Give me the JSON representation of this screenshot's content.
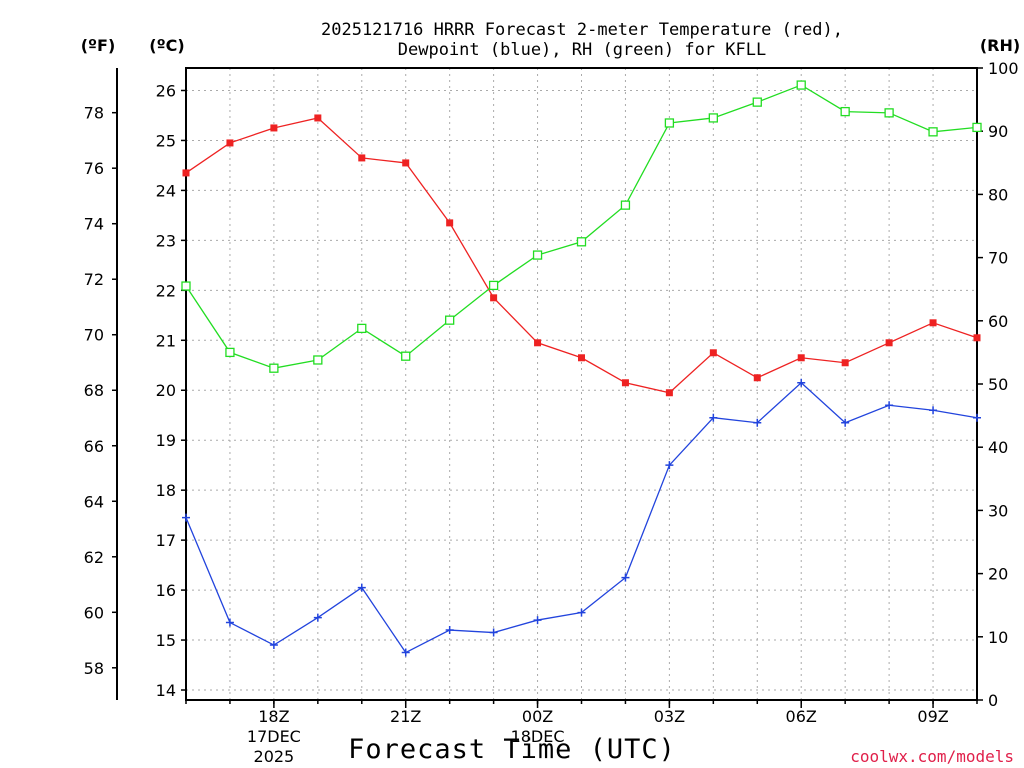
{
  "chart_data": {
    "type": "line",
    "title": [
      "2025121716 HRRR Forecast 2-meter Temperature (red),",
      "Dewpoint (blue), RH (green) for KFLL"
    ],
    "units": {
      "fahrenheit": "(ºF)",
      "celsius": "(ºC)",
      "rh": "(RH)"
    },
    "xlabel": "Forecast Time (UTC)",
    "credit": "coolwx.com/models",
    "x": [
      16,
      17,
      18,
      19,
      20,
      21,
      22,
      23,
      24,
      25,
      26,
      27,
      28,
      29,
      30,
      31,
      32,
      33,
      34
    ],
    "xlim": [
      16,
      34
    ],
    "x_ticks": [
      {
        "x": 18,
        "label": "18Z",
        "sub": [
          "17DEC",
          "2025"
        ]
      },
      {
        "x": 21,
        "label": "21Z",
        "sub": []
      },
      {
        "x": 24,
        "label": "00Z",
        "sub": [
          "18DEC"
        ]
      },
      {
        "x": 27,
        "label": "03Z",
        "sub": []
      },
      {
        "x": 30,
        "label": "06Z",
        "sub": []
      },
      {
        "x": 33,
        "label": "09Z",
        "sub": []
      }
    ],
    "ylim_c": [
      13.8,
      26.45
    ],
    "yticks_c": [
      "14",
      "15",
      "16",
      "17",
      "18",
      "19",
      "20",
      "21",
      "22",
      "23",
      "24",
      "25",
      "26"
    ],
    "yticks_f": [
      "58",
      "60",
      "62",
      "64",
      "66",
      "68",
      "70",
      "72",
      "74",
      "76",
      "78"
    ],
    "ylim_rh": [
      0,
      100
    ],
    "yticks_rh": [
      "0",
      "10",
      "20",
      "30",
      "40",
      "50",
      "60",
      "70",
      "80",
      "90",
      "100"
    ],
    "series": [
      {
        "name": "Temperature",
        "color": "#ee2222",
        "marker": "filled-square",
        "axis": "celsius",
        "values": [
          24.35,
          24.95,
          25.25,
          25.45,
          24.65,
          24.55,
          23.35,
          21.85,
          20.95,
          20.65,
          20.15,
          19.95,
          20.75,
          20.25,
          20.65,
          20.55,
          20.95,
          21.35,
          21.05
        ]
      },
      {
        "name": "Dewpoint",
        "color": "#2244dd",
        "marker": "plus",
        "axis": "celsius",
        "values": [
          17.45,
          15.35,
          14.9,
          15.45,
          16.05,
          14.75,
          15.2,
          15.15,
          15.4,
          15.55,
          16.25,
          18.5,
          19.45,
          19.35,
          20.15,
          19.35,
          19.7,
          19.6,
          19.45
        ]
      },
      {
        "name": "RH",
        "color": "#22dd22",
        "marker": "hollow-square",
        "axis": "rh",
        "values": [
          65.5,
          55.0,
          52.5,
          53.8,
          58.8,
          54.4,
          60.1,
          65.6,
          70.4,
          72.5,
          78.3,
          91.3,
          92.1,
          94.6,
          97.3,
          93.1,
          92.9,
          89.9,
          90.6
        ]
      }
    ]
  }
}
